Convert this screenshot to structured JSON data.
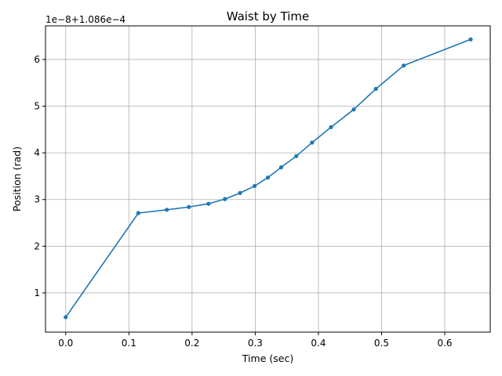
{
  "chart_data": {
    "type": "line",
    "title": "Waist by Time",
    "xlabel": "Time (sec)",
    "ylabel": "Position (rad)",
    "offset_label": "1e−8+1.086e−4",
    "xlim": [
      -0.032,
      0.672
    ],
    "ylim": [
      0.16,
      6.72
    ],
    "xticks": [
      0.0,
      0.1,
      0.2,
      0.3,
      0.4,
      0.5,
      0.6
    ],
    "xtick_labels": [
      "0.0",
      "0.1",
      "0.2",
      "0.3",
      "0.4",
      "0.5",
      "0.6"
    ],
    "yticks": [
      1,
      2,
      3,
      4,
      5,
      6
    ],
    "ytick_labels": [
      "1",
      "2",
      "3",
      "4",
      "5",
      "6"
    ],
    "grid": true,
    "color": "#1f77b4",
    "x": [
      0.0,
      0.115,
      0.16,
      0.195,
      0.226,
      0.252,
      0.276,
      0.299,
      0.32,
      0.341,
      0.365,
      0.39,
      0.42,
      0.456,
      0.491,
      0.535,
      0.641
    ],
    "y": [
      0.48,
      2.71,
      2.78,
      2.84,
      2.91,
      3.01,
      3.14,
      3.29,
      3.47,
      3.69,
      3.93,
      4.22,
      4.55,
      4.93,
      5.37,
      5.87,
      6.43
    ]
  }
}
